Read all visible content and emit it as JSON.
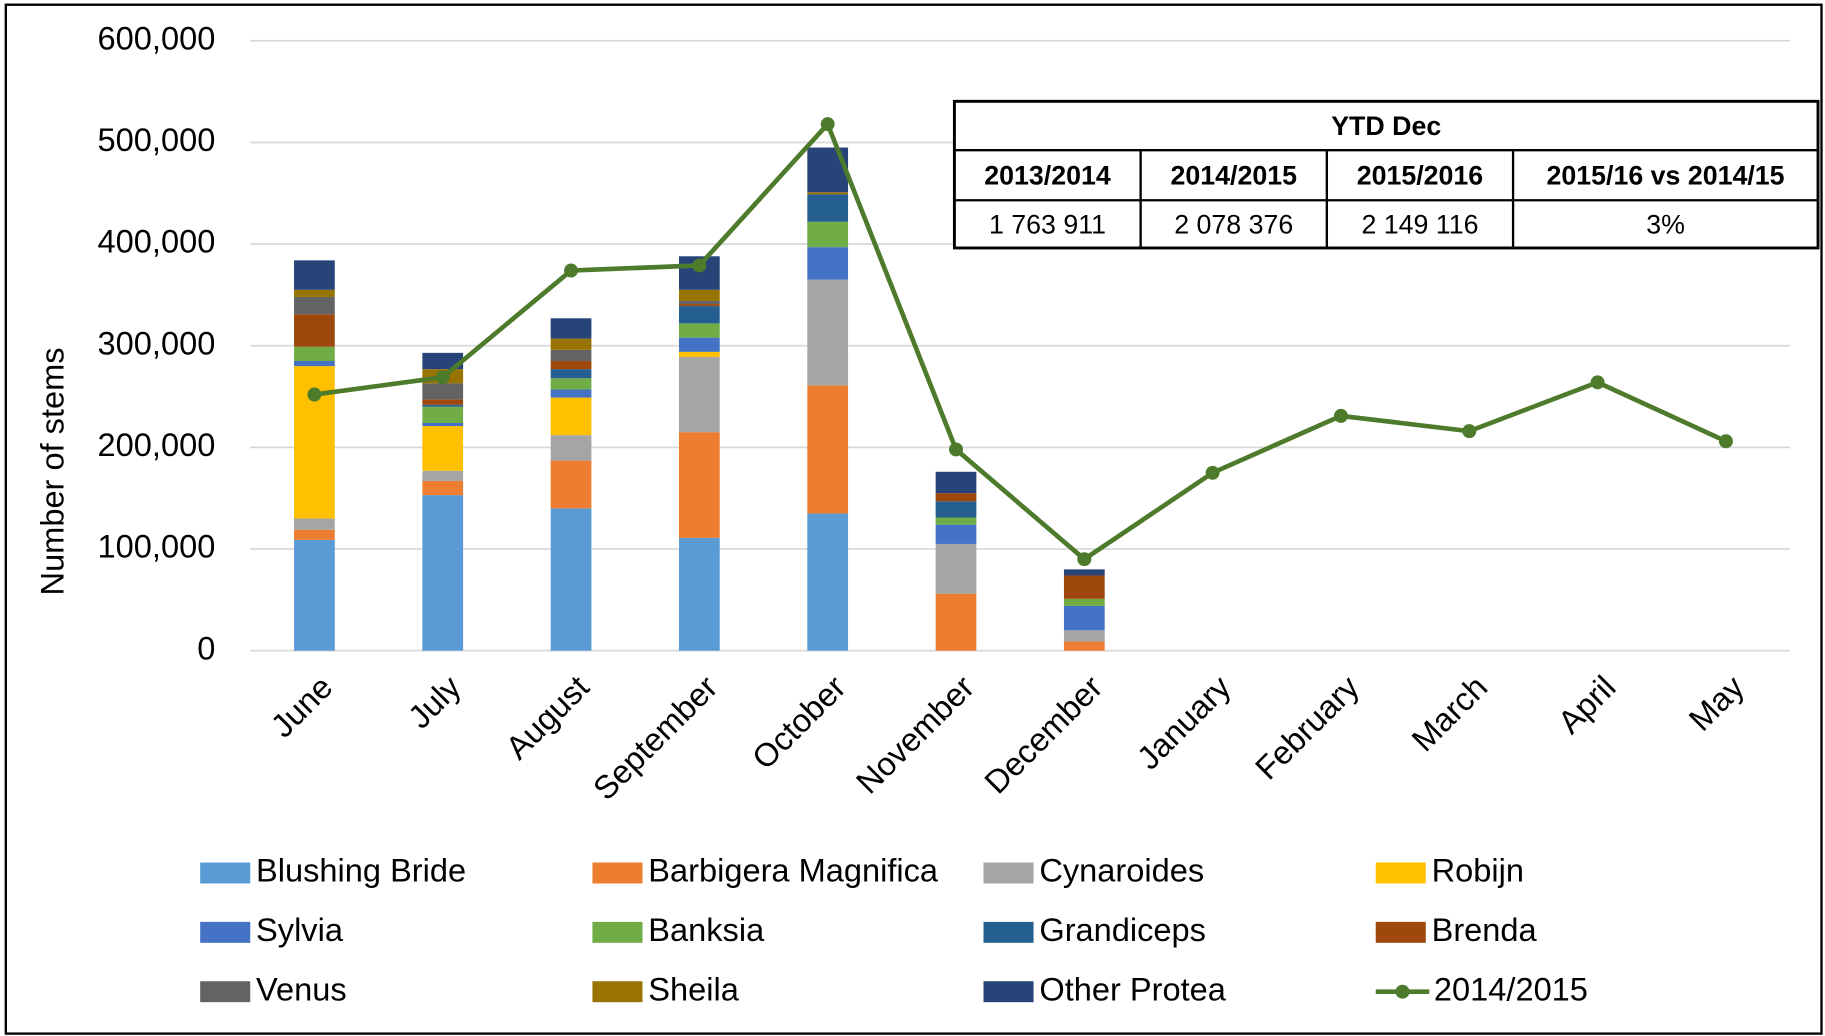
{
  "chart_data": {
    "type": "bar",
    "ylabel": "Number of stems",
    "categories": [
      "June",
      "July",
      "August",
      "September",
      "October",
      "November",
      "December",
      "January",
      "February",
      "March",
      "April",
      "May"
    ],
    "ylim": [
      0,
      600000
    ],
    "yticks": [
      0,
      {
        "value": 100000,
        "label": "100,000"
      },
      {
        "value": 200000,
        "label": "200,000"
      },
      {
        "value": 300000,
        "label": "300,000"
      },
      {
        "value": 400000,
        "label": "400,000"
      },
      {
        "value": 500000,
        "label": "500,000"
      },
      {
        "value": 600000,
        "label": "600,000"
      }
    ],
    "grid": true,
    "stacked": true,
    "series": [
      {
        "name": "Blushing Bride",
        "color": "#5b9bd5",
        "values": [
          109000,
          153000,
          140000,
          111000,
          135000,
          0,
          0,
          null,
          null,
          null,
          null,
          null
        ]
      },
      {
        "name": "Barbigera Magnifica",
        "color": "#ed7d31",
        "values": [
          10000,
          14000,
          47000,
          104000,
          126000,
          56000,
          9000,
          null,
          null,
          null,
          null,
          null
        ]
      },
      {
        "name": "Cynaroides",
        "color": "#a5a5a5",
        "values": [
          11000,
          10000,
          25000,
          74000,
          104000,
          49000,
          11000,
          null,
          null,
          null,
          null,
          null
        ]
      },
      {
        "name": "Robijn",
        "color": "#ffc000",
        "values": [
          150000,
          44000,
          37000,
          5000,
          0,
          0,
          0,
          null,
          null,
          null,
          null,
          null
        ]
      },
      {
        "name": "Sylvia",
        "color": "#4472c4",
        "values": [
          5000,
          3000,
          8000,
          14000,
          32000,
          19000,
          24000,
          null,
          null,
          null,
          null,
          null
        ]
      },
      {
        "name": "Banksia",
        "color": "#70ad47",
        "values": [
          14000,
          16000,
          11000,
          14000,
          25000,
          7000,
          7000,
          null,
          null,
          null,
          null,
          null
        ]
      },
      {
        "name": "Grandiceps",
        "color": "#255e91",
        "values": [
          0,
          2000,
          9000,
          17000,
          27000,
          16000,
          0,
          null,
          null,
          null,
          null,
          null
        ]
      },
      {
        "name": "Brenda",
        "color": "#9e480e",
        "values": [
          32000,
          5000,
          8000,
          2000,
          0,
          8000,
          23000,
          null,
          null,
          null,
          null,
          null
        ]
      },
      {
        "name": "Venus",
        "color": "#636363",
        "values": [
          17000,
          16000,
          11000,
          3000,
          0,
          0,
          0,
          null,
          null,
          null,
          null,
          null
        ]
      },
      {
        "name": "Sheila",
        "color": "#997300",
        "values": [
          7000,
          14000,
          11000,
          11000,
          2000,
          0,
          0,
          null,
          null,
          null,
          null,
          null
        ]
      },
      {
        "name": "Other Protea",
        "color": "#264478",
        "values": [
          29000,
          16000,
          20000,
          33000,
          44000,
          21000,
          6000,
          null,
          null,
          null,
          null,
          null
        ]
      },
      {
        "name": "2014/2015",
        "type": "line",
        "color": "#4e7a2c",
        "values": [
          252000,
          269000,
          374000,
          379000,
          518000,
          198000,
          90000,
          175000,
          231000,
          216000,
          264000,
          206000
        ]
      }
    ]
  },
  "table": {
    "title": "YTD Dec",
    "headers": [
      "2013/2014",
      "2014/2015",
      "2015/2016",
      "2015/16 vs 2014/15"
    ],
    "rows": [
      [
        "1 763 911",
        "2 078 376",
        "2 149 116",
        "3%"
      ]
    ]
  }
}
